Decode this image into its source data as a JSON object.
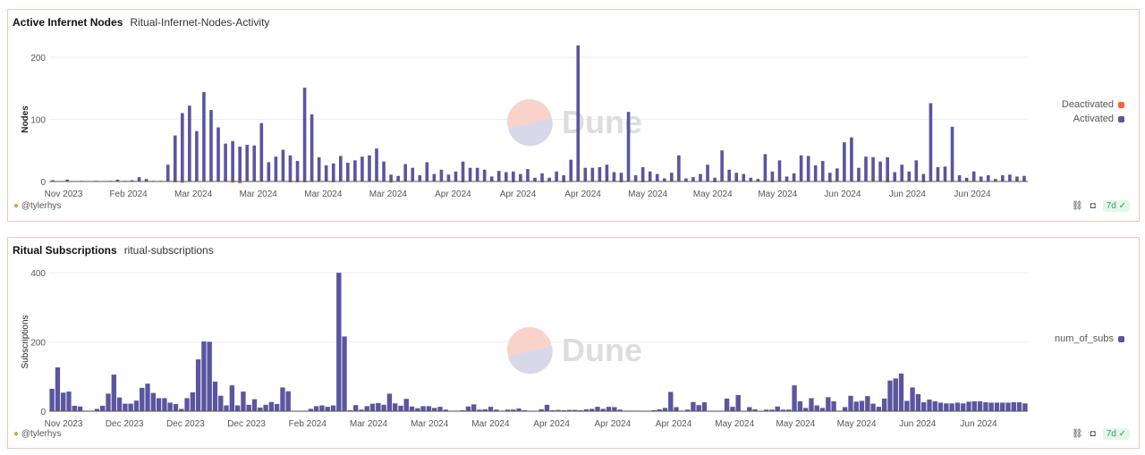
{
  "charts": [
    {
      "title": "Active Infernet Nodes",
      "subtitle": "Ritual-Infernet-Nodes-Activity",
      "author": "@tylerhys",
      "refresh": "7d",
      "legend": [
        {
          "label": "Deactivated",
          "color": "#f4663a"
        },
        {
          "label": "Activated",
          "color": "#5b55a0"
        }
      ]
    },
    {
      "title": "Ritual Subscriptions",
      "subtitle": "ritual-subscriptions",
      "author": "@tylerhys",
      "refresh": "7d",
      "legend": [
        {
          "label": "num_of_subs",
          "color": "#5b55a0"
        }
      ]
    }
  ],
  "watermark": "Dune",
  "chart_data": [
    {
      "type": "bar",
      "ylabel": "Nodes",
      "ylim": [
        0,
        230
      ],
      "yticks": [
        0,
        100,
        200
      ],
      "grid": true,
      "legend_position": "right",
      "xticks": [
        "Nov 2023",
        "Feb 2024",
        "Mar 2024",
        "Mar 2024",
        "Mar 2024",
        "Mar 2024",
        "Apr 2024",
        "Apr 2024",
        "Apr 2024",
        "May 2024",
        "May 2024",
        "May 2024",
        "Jun 2024",
        "Jun 2024",
        "Jun 2024"
      ],
      "series": [
        {
          "name": "Activated",
          "color": "#5b55a0",
          "values": [
            2,
            0,
            3,
            0,
            1,
            0,
            1,
            0,
            1,
            3,
            1,
            2,
            7,
            4,
            1,
            1,
            27,
            74,
            110,
            122,
            81,
            144,
            115,
            87,
            61,
            65,
            56,
            59,
            58,
            94,
            31,
            40,
            51,
            42,
            33,
            151,
            108,
            39,
            26,
            29,
            41,
            30,
            34,
            40,
            42,
            53,
            32,
            11,
            9,
            28,
            22,
            10,
            31,
            12,
            19,
            11,
            16,
            32,
            22,
            22,
            19,
            8,
            17,
            15,
            16,
            12,
            20,
            6,
            13,
            6,
            16,
            10,
            35,
            219,
            22,
            22,
            23,
            27,
            15,
            14,
            112,
            10,
            23,
            16,
            12,
            5,
            14,
            42,
            5,
            7,
            12,
            27,
            6,
            50,
            19,
            14,
            12,
            6,
            4,
            44,
            16,
            34,
            8,
            13,
            42,
            41,
            26,
            33,
            14,
            21,
            63,
            71,
            22,
            40,
            39,
            32,
            39,
            15,
            27,
            16,
            34,
            12,
            126,
            23,
            24,
            88,
            10,
            6,
            16,
            8,
            10,
            4,
            10,
            11,
            8,
            9
          ]
        },
        {
          "name": "Deactivated",
          "color": "#f4663a",
          "values": [
            0,
            0,
            0,
            0,
            0,
            0,
            0,
            0,
            0,
            0,
            0,
            0,
            0,
            0,
            0,
            0,
            0,
            -1,
            -2,
            0,
            0,
            0,
            0,
            0,
            0,
            -2,
            -3,
            0,
            0,
            0,
            0,
            0,
            0,
            -1,
            -1,
            -1,
            0,
            0,
            0,
            -1,
            0,
            0,
            0,
            0,
            0,
            0,
            0,
            -2,
            0,
            0,
            0,
            0,
            0,
            0,
            0,
            0,
            0,
            -1,
            0,
            0,
            0,
            0,
            0,
            0,
            -1,
            0,
            0,
            0,
            -1,
            0,
            0,
            -1,
            0,
            0,
            0,
            0,
            0,
            0,
            0,
            -1,
            0,
            0,
            -1,
            0,
            0,
            0,
            0,
            0,
            0,
            0,
            0,
            0,
            -1,
            0,
            0,
            0,
            0,
            0,
            0,
            0,
            -1,
            0,
            0,
            0,
            0,
            0,
            0,
            0,
            -1,
            0,
            0,
            0,
            0,
            0,
            0,
            0,
            -1,
            0,
            0,
            0,
            0,
            -1,
            0,
            0,
            0,
            0,
            0,
            0,
            0,
            0,
            0,
            0,
            0,
            0,
            0,
            0
          ]
        }
      ]
    },
    {
      "type": "bar",
      "ylabel": "Subscriptions",
      "ylim": [
        0,
        410
      ],
      "yticks": [
        0,
        200,
        400
      ],
      "grid": true,
      "legend_position": "right",
      "xticks": [
        "Nov 2023",
        "Dec 2023",
        "Dec 2023",
        "Dec 2023",
        "Feb 2024",
        "Mar 2024",
        "Mar 2024",
        "Mar 2024",
        "Apr 2024",
        "Apr 2024",
        "Apr 2024",
        "May 2024",
        "May 2024",
        "May 2024",
        "Jun 2024",
        "Jun 2024"
      ],
      "series": [
        {
          "name": "num_of_subs",
          "color": "#5b55a0",
          "values": [
            65,
            127,
            54,
            57,
            16,
            14,
            2,
            2,
            7,
            16,
            51,
            106,
            40,
            22,
            22,
            31,
            68,
            80,
            53,
            38,
            38,
            25,
            21,
            7,
            38,
            55,
            150,
            202,
            201,
            86,
            45,
            17,
            75,
            17,
            57,
            19,
            35,
            11,
            19,
            27,
            21,
            69,
            58,
            1,
            1,
            0,
            7,
            15,
            17,
            13,
            17,
            400,
            216,
            3,
            18,
            5,
            15,
            22,
            24,
            19,
            51,
            23,
            16,
            36,
            14,
            9,
            15,
            15,
            10,
            13,
            5,
            1,
            2,
            3,
            14,
            20,
            5,
            6,
            13,
            5,
            2,
            5,
            5,
            8,
            3,
            1,
            1,
            6,
            19,
            3,
            4,
            3,
            4,
            4,
            3,
            6,
            7,
            13,
            7,
            13,
            12,
            5,
            2,
            2,
            2,
            1,
            1,
            3,
            6,
            10,
            56,
            12,
            2,
            5,
            27,
            18,
            26,
            1,
            1,
            1,
            37,
            13,
            47,
            1,
            12,
            6,
            1,
            5,
            5,
            14,
            5,
            5,
            75,
            29,
            10,
            38,
            17,
            10,
            41,
            29,
            2,
            12,
            45,
            28,
            30,
            44,
            22,
            13,
            37,
            89,
            95,
            109,
            30,
            69,
            50,
            26,
            34,
            29,
            25,
            23,
            23,
            25,
            23,
            28,
            29,
            29,
            26,
            25,
            25,
            25,
            25,
            26,
            26,
            23
          ]
        }
      ]
    }
  ]
}
